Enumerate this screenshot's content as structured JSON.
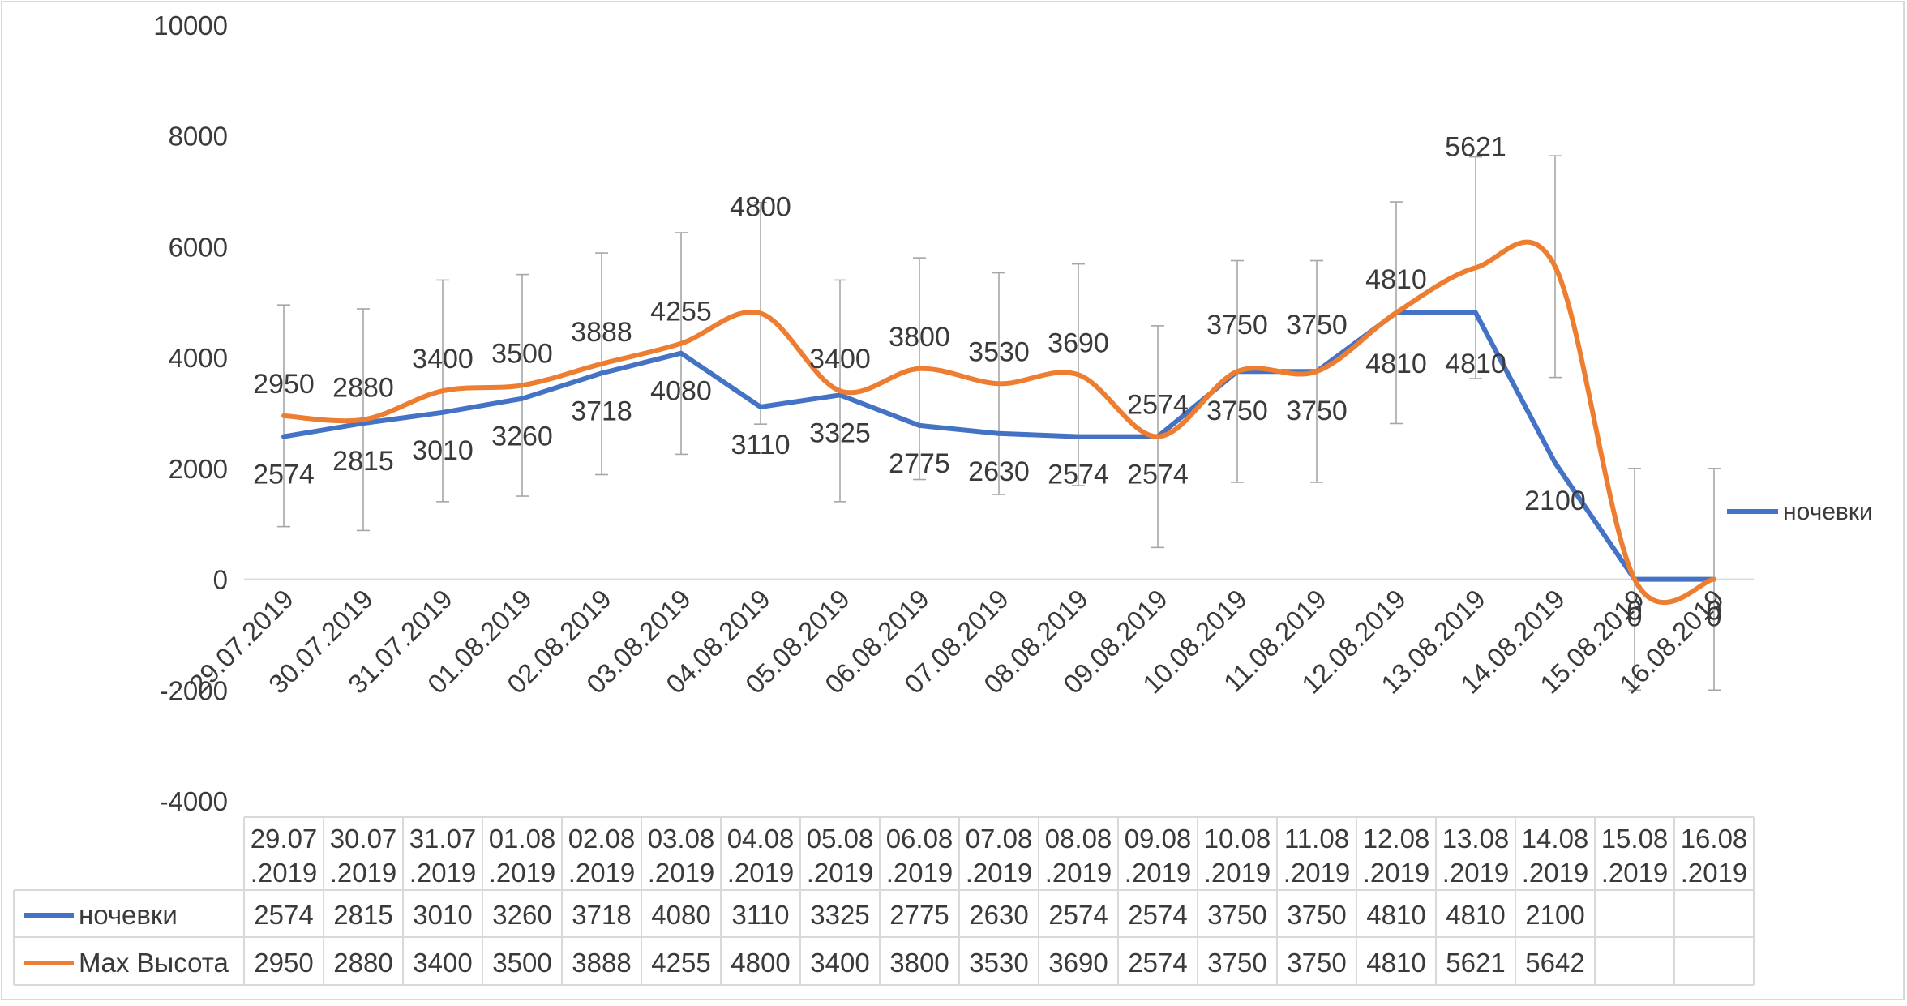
{
  "chart_data": {
    "type": "line",
    "title": "",
    "xlabel": "",
    "ylabel": "",
    "ylim": [
      -4000,
      10000
    ],
    "y_ticks": [
      -4000,
      -2000,
      0,
      2000,
      4000,
      6000,
      8000,
      10000
    ],
    "y_tick_labels": [
      "-4000",
      "-2000",
      "0",
      "2000",
      "4000",
      "6000",
      "8000",
      "10000"
    ],
    "categories": [
      "29.07.2019",
      "30.07.2019",
      "31.07.2019",
      "01.08.2019",
      "02.08.2019",
      "03.08.2019",
      "04.08.2019",
      "05.08.2019",
      "06.08.2019",
      "07.08.2019",
      "08.08.2019",
      "09.08.2019",
      "10.08.2019",
      "11.08.2019",
      "12.08.2019",
      "13.08.2019",
      "14.08.2019",
      "15.08.2019",
      "16.08.2019"
    ],
    "table_header_line1": [
      "29.07",
      "30.07",
      "31.07",
      "01.08",
      "02.08",
      "03.08",
      "04.08",
      "05.08",
      "06.08",
      "07.08",
      "08.08",
      "09.08",
      "10.08",
      "11.08",
      "12.08",
      "13.08",
      "14.08",
      "15.08",
      "16.08"
    ],
    "table_header_line2": [
      ".2019",
      ".2019",
      ".2019",
      ".2019",
      ".2019",
      ".2019",
      ".2019",
      ".2019",
      ".2019",
      ".2019",
      ".2019",
      ".2019",
      ".2019",
      ".2019",
      ".2019",
      ".2019",
      ".2019",
      ".2019",
      ".2019"
    ],
    "series": [
      {
        "name": "ночевки",
        "color": "#4472C4",
        "smooth": false,
        "values": [
          2574,
          2815,
          3010,
          3260,
          3718,
          4080,
          3110,
          3325,
          2775,
          2630,
          2574,
          2574,
          3750,
          3750,
          4810,
          4810,
          2100,
          0,
          0
        ],
        "data_labels": [
          "2574",
          "2815",
          "3010",
          "3260",
          "3718",
          "4080",
          "3110",
          "3325",
          "2775",
          "2630",
          "2574",
          "2574",
          "3750",
          "3750",
          "4810",
          "4810",
          "2100",
          "0",
          "0"
        ],
        "table_values": [
          "2574",
          "2815",
          "3010",
          "3260",
          "3718",
          "4080",
          "3110",
          "3325",
          "2775",
          "2630",
          "2574",
          "2574",
          "3750",
          "3750",
          "4810",
          "4810",
          "2100",
          "",
          ""
        ]
      },
      {
        "name": "Max Высота",
        "color": "#ED7D31",
        "smooth": true,
        "values": [
          2950,
          2880,
          3400,
          3500,
          3888,
          4255,
          4800,
          3400,
          3800,
          3530,
          3690,
          2574,
          3750,
          3750,
          4810,
          5621,
          5642,
          0,
          0
        ],
        "data_labels": [
          "2950",
          "2880",
          "3400",
          "3500",
          "3888",
          "4255",
          "4800",
          "3400",
          "3800",
          "3530",
          "3690",
          "2574",
          "3750",
          "3750",
          "4810",
          "5621",
          "",
          "0",
          "0"
        ],
        "table_values": [
          "2950",
          "2880",
          "3400",
          "3500",
          "3888",
          "4255",
          "4800",
          "3400",
          "3800",
          "3530",
          "3690",
          "2574",
          "3750",
          "3750",
          "4810",
          "5621",
          "5642",
          "",
          ""
        ],
        "error_bar": 2000
      }
    ],
    "legend": {
      "position": "right",
      "entries": [
        "ночевки"
      ]
    },
    "grid": false
  }
}
